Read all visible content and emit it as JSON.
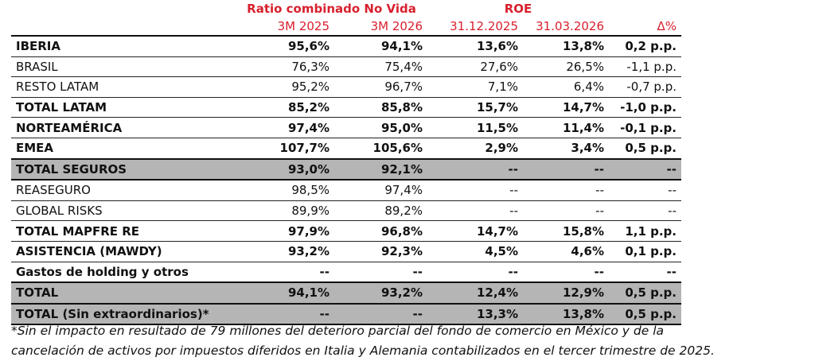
{
  "table": {
    "group_headers": [
      "Ratio combinado No Vida",
      "ROE"
    ],
    "sub_headers": [
      "3M 2025",
      "3M 2026",
      "31.12.2025",
      "31.03.2026",
      "Δ%"
    ],
    "rows": [
      [
        "IBERIA",
        "95,6%",
        "94,1%",
        "13,6%",
        "13,8%",
        "0,2 p.p."
      ],
      [
        "BRASIL",
        "76,3%",
        "75,4%",
        "27,6%",
        "26,5%",
        "-1,1 p.p."
      ],
      [
        "RESTO LATAM",
        "95,2%",
        "96,7%",
        "7,1%",
        "6,4%",
        "-0,7 p.p."
      ],
      [
        "TOTAL LATAM",
        "85,2%",
        "85,8%",
        "15,7%",
        "14,7%",
        "-1,0 p.p."
      ],
      [
        "NORTEAMÉRICA",
        "97,4%",
        "95,0%",
        "11,5%",
        "11,4%",
        "-0,1 p.p."
      ],
      [
        "EMEA",
        "107,7%",
        "105,6%",
        "2,9%",
        "3,4%",
        "0,5 p.p."
      ],
      [
        "TOTAL SEGUROS",
        "93,0%",
        "92,1%",
        "--",
        "--",
        "--"
      ],
      [
        "REASEGURO",
        "98,5%",
        "97,4%",
        "--",
        "--",
        "--"
      ],
      [
        "GLOBAL RISKS",
        "89,9%",
        "89,2%",
        "--",
        "--",
        "--"
      ],
      [
        "TOTAL MAPFRE RE",
        "97,9%",
        "96,8%",
        "14,7%",
        "15,8%",
        "1,1 p.p."
      ],
      [
        "ASISTENCIA (MAWDY)",
        "93,2%",
        "92,3%",
        "4,5%",
        "4,6%",
        "0,1 p.p."
      ],
      [
        "Gastos de holding y otros",
        "--",
        "--",
        "--",
        "--",
        "--"
      ],
      [
        "TOTAL",
        "94,1%",
        "93,2%",
        "12,4%",
        "12,9%",
        "0,5 p.p."
      ],
      [
        "TOTAL (Sin extraordinarios)*",
        "--",
        "--",
        "13,3%",
        "13,8%",
        "0,5 p.p."
      ]
    ]
  },
  "footnote": [
    "*Sin el impacto en resultado de 79 millones del deterioro parcial del fondo de comercio en México y de la",
    "cancelación de activos por impuestos diferidos en Italia y Alemania contabilizados en el tercer trimestre de 2025."
  ]
}
